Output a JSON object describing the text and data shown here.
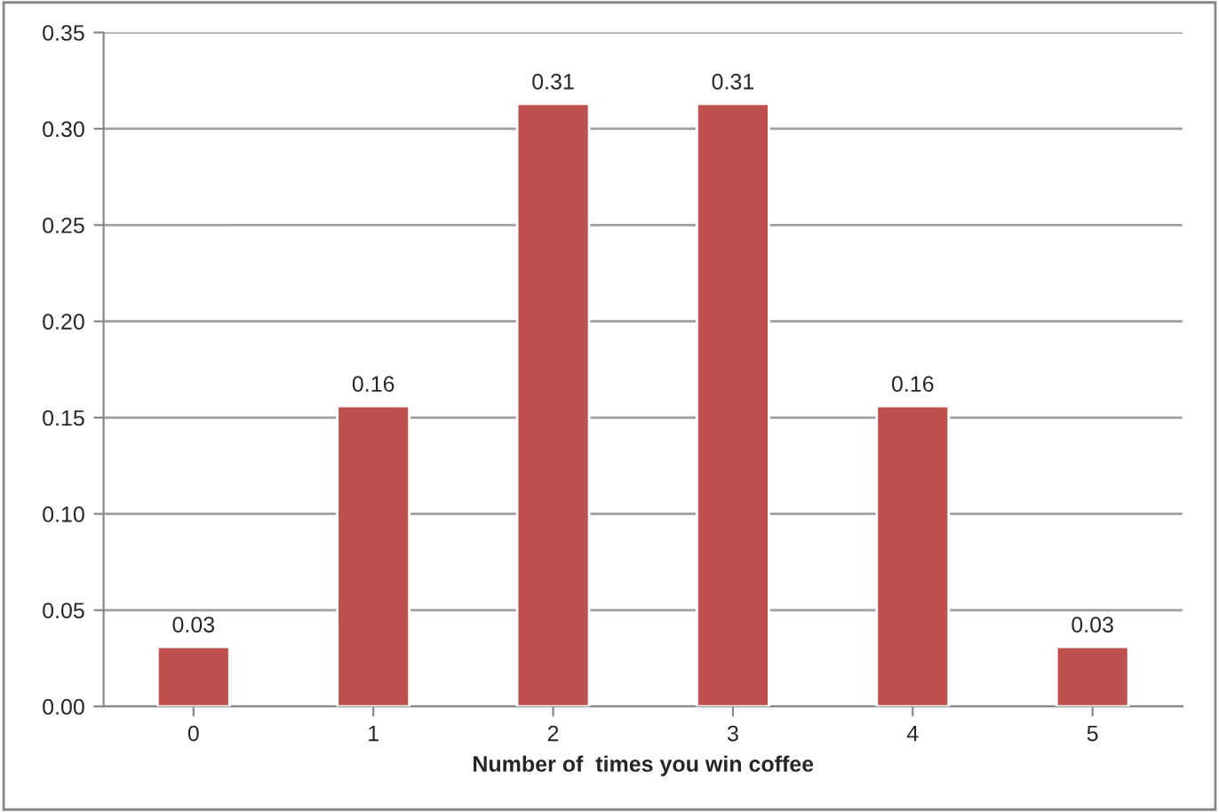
{
  "chart_data": {
    "type": "bar",
    "xlabel": "Number of  times you win coffee",
    "categories": [
      "0",
      "1",
      "2",
      "3",
      "4",
      "5"
    ],
    "values": [
      0.031,
      0.156,
      0.313,
      0.313,
      0.156,
      0.031
    ],
    "value_labels": [
      "0.03",
      "0.16",
      "0.31",
      "0.31",
      "0.16",
      "0.03"
    ],
    "color": "#c0504d",
    "ylim": [
      0,
      0.35
    ],
    "yticks": [
      {
        "value": 0,
        "label": "0.00"
      },
      {
        "value": 0.05,
        "label": "0.05"
      },
      {
        "value": 0.1,
        "label": "0.10"
      },
      {
        "value": 0.15,
        "label": "0.15"
      },
      {
        "value": 0.2,
        "label": "0.20"
      },
      {
        "value": 0.25,
        "label": "0.25"
      },
      {
        "value": 0.3,
        "label": "0.30"
      },
      {
        "value": 0.35,
        "label": "0.35"
      }
    ],
    "grid": "y",
    "legend": false
  }
}
